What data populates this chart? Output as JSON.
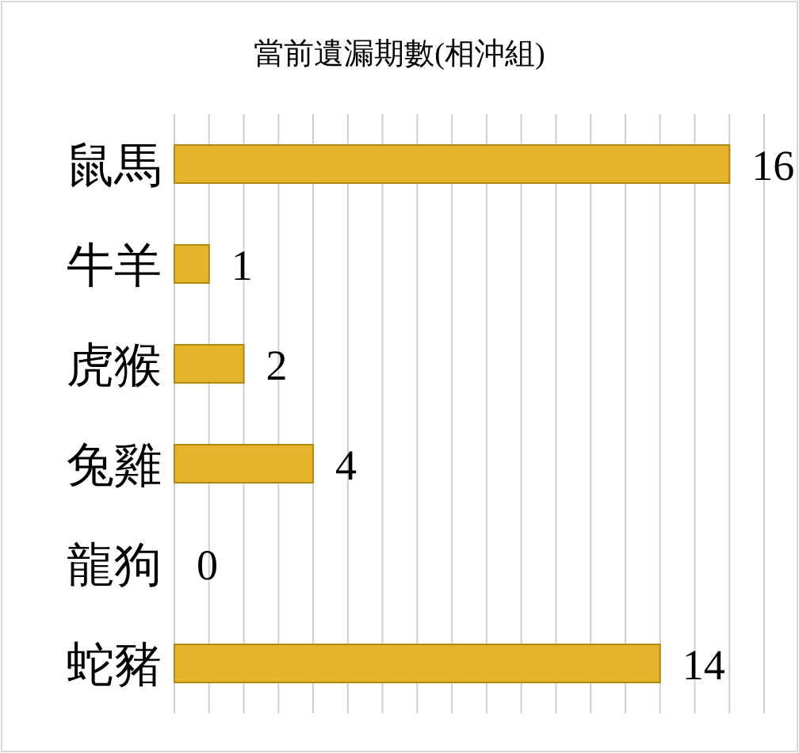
{
  "chart_data": {
    "type": "bar",
    "orientation": "horizontal",
    "title": "當前遺漏期數(相沖組)",
    "categories": [
      "鼠馬",
      "牛羊",
      "虎猴",
      "兔雞",
      "龍狗",
      "蛇豬"
    ],
    "values": [
      16,
      1,
      2,
      4,
      0,
      14
    ],
    "color": "#e6b42a",
    "data_labels": true,
    "grid": "x",
    "xlim": [
      0,
      17
    ],
    "xticks": [
      {
        "value": 0,
        "label": null
      },
      {
        "value": 1,
        "label": null
      },
      {
        "value": 2,
        "label": null
      },
      {
        "value": 3,
        "label": null
      },
      {
        "value": 4,
        "label": null
      },
      {
        "value": 5,
        "label": null
      },
      {
        "value": 6,
        "label": null
      },
      {
        "value": 7,
        "label": null
      },
      {
        "value": 8,
        "label": null
      },
      {
        "value": 9,
        "label": null
      },
      {
        "value": 10,
        "label": null
      },
      {
        "value": 11,
        "label": null
      },
      {
        "value": 12,
        "label": null
      },
      {
        "value": 13,
        "label": null
      },
      {
        "value": 14,
        "label": null
      },
      {
        "value": 15,
        "label": null
      },
      {
        "value": 16,
        "label": null
      },
      {
        "value": 17,
        "label": null
      }
    ],
    "tick_labels": "y"
  }
}
